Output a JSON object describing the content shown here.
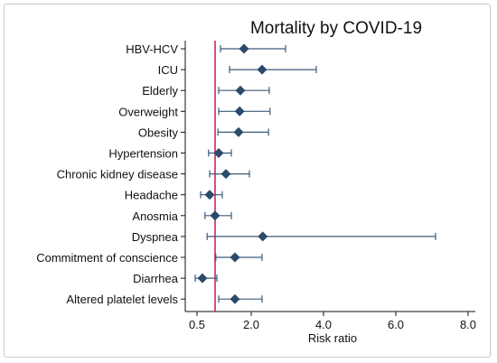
{
  "chart_data": {
    "type": "forest",
    "title": "Mortality by COVID-19",
    "xlabel": "Risk ratio",
    "ylabel": "",
    "xlim": [
      0.5,
      8.0
    ],
    "xticks": [
      0.5,
      2.0,
      4.0,
      6.0,
      8.0
    ],
    "xtick_labels": [
      "0.5",
      "2.0",
      "4.0",
      "6.0",
      "8.0"
    ],
    "reference_line": 1.0,
    "reference_line_color": "#c2185b",
    "marker_color": "#2c4a6b",
    "ci_color": "#3c5a7a",
    "grid": false,
    "legend": "none",
    "categories": [
      "HBV-HCV",
      "ICU",
      "Elderly",
      "Overweight",
      "Obesity",
      "Hypertension",
      "Chronic kidney disease",
      "Headache",
      "Anosmia",
      "Dyspnea",
      "Commitment of conscience",
      "Diarrhea",
      "Altered platelet levels"
    ],
    "values": [
      1.8,
      2.3,
      1.7,
      1.68,
      1.65,
      1.1,
      1.3,
      0.85,
      1.0,
      2.32,
      1.55,
      0.65,
      1.55
    ],
    "ci_lower": [
      1.15,
      1.4,
      1.1,
      1.1,
      1.08,
      0.82,
      0.85,
      0.6,
      0.72,
      0.78,
      1.02,
      0.45,
      1.1
    ],
    "ci_upper": [
      2.95,
      3.8,
      2.5,
      2.52,
      2.48,
      1.45,
      1.95,
      1.2,
      1.45,
      7.1,
      2.3,
      1.05,
      2.3
    ]
  }
}
